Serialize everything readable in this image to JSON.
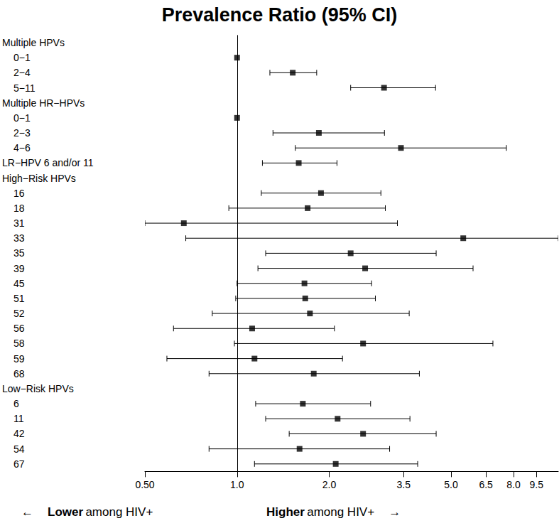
{
  "chart_data": {
    "type": "forest",
    "title": "Prevalence Ratio (95% CI)",
    "log": "x",
    "xlim": [
      0.5,
      11.2
    ],
    "xticks": [
      {
        "value": 0.5,
        "label": "0.50"
      },
      {
        "value": 1,
        "label": "1.0"
      },
      {
        "value": 2,
        "label": "2.0"
      },
      3.5,
      {
        "value": 5,
        "label": "5.0"
      },
      6.5,
      {
        "value": 8,
        "label": "8.0"
      },
      9.5
    ],
    "reference_line": 1,
    "marker": "square",
    "color": "#000000",
    "annotations": {
      "left": [
        "←",
        "Lower",
        "among HIV+"
      ],
      "right": [
        "Higher",
        "among HIV+",
        "→"
      ]
    },
    "groups": [
      {
        "label": "Multiple HPVs",
        "rows": [
          {
            "label": "0−1",
            "value": 1,
            "lower": null,
            "upper": null
          },
          {
            "label": "2−4",
            "value": 1.52,
            "lower": 1.28,
            "upper": 1.82
          },
          {
            "label": "5−11",
            "value": 3.02,
            "lower": 2.35,
            "upper": 4.45
          }
        ]
      },
      {
        "label": "Multiple HR−HPVs",
        "rows": [
          {
            "label": "0−1",
            "value": 1,
            "lower": null,
            "upper": null
          },
          {
            "label": "2−3",
            "value": 1.85,
            "lower": 1.31,
            "upper": 3.03
          },
          {
            "label": "4−6",
            "value": 3.43,
            "lower": 1.55,
            "upper": 7.58
          }
        ]
      },
      {
        "label": "LR−HPV 6 and/or 11",
        "value": 1.59,
        "lower": 1.21,
        "upper": 2.12,
        "rows": []
      },
      {
        "label": "High−Risk HPVs",
        "rows": [
          {
            "label": "16",
            "value": 1.88,
            "lower": 1.2,
            "upper": 2.95
          },
          {
            "label": "18",
            "value": 1.7,
            "lower": 0.94,
            "upper": 3.05
          },
          {
            "label": "31",
            "value": 0.67,
            "lower": 0.5,
            "upper": 3.34
          },
          {
            "label": "33",
            "value": 5.48,
            "lower": 0.68,
            "upper": 11.2
          },
          {
            "label": "35",
            "value": 2.35,
            "lower": 1.24,
            "upper": 4.47
          },
          {
            "label": "39",
            "value": 2.62,
            "lower": 1.17,
            "upper": 5.9
          },
          {
            "label": "45",
            "value": 1.66,
            "lower": 1.0,
            "upper": 2.75
          },
          {
            "label": "51",
            "value": 1.67,
            "lower": 0.99,
            "upper": 2.83
          },
          {
            "label": "52",
            "value": 1.73,
            "lower": 0.83,
            "upper": 3.65
          },
          {
            "label": "56",
            "value": 1.12,
            "lower": 0.62,
            "upper": 2.08
          },
          {
            "label": "58",
            "value": 2.58,
            "lower": 0.98,
            "upper": 6.85
          },
          {
            "label": "59",
            "value": 1.14,
            "lower": 0.59,
            "upper": 2.21
          },
          {
            "label": "68",
            "value": 1.78,
            "lower": 0.81,
            "upper": 3.94
          }
        ]
      },
      {
        "label": "Low−Risk HPVs",
        "rows": [
          {
            "label": "6",
            "value": 1.64,
            "lower": 1.15,
            "upper": 2.73
          },
          {
            "label": "11",
            "value": 2.13,
            "lower": 1.24,
            "upper": 3.67
          },
          {
            "label": "42",
            "value": 2.58,
            "lower": 1.48,
            "upper": 4.47
          },
          {
            "label": "54",
            "value": 1.6,
            "lower": 0.81,
            "upper": 3.15
          },
          {
            "label": "67",
            "value": 2.1,
            "lower": 1.14,
            "upper": 3.89
          }
        ]
      }
    ]
  }
}
